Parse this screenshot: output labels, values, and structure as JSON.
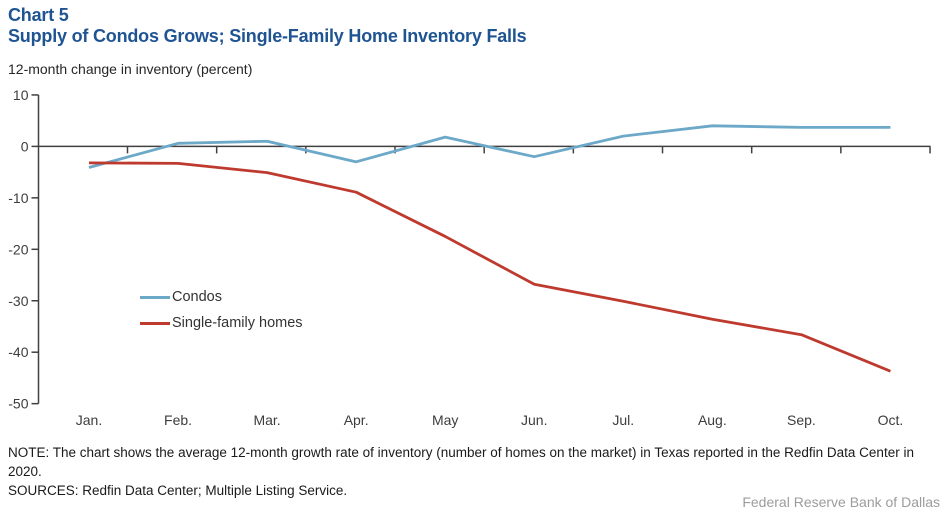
{
  "header": {
    "chart_label": "Chart 5",
    "title": "Supply of Condos Grows; Single-Family Home Inventory Falls",
    "subtitle": "12-month change in inventory (percent)"
  },
  "chart_data": {
    "type": "line",
    "title": "Supply of Condos Grows; Single-Family Home Inventory Falls",
    "xlabel": "",
    "ylabel": "12-month change in inventory (percent)",
    "categories": [
      "Jan.",
      "Feb.",
      "Mar.",
      "Apr.",
      "May",
      "Jun.",
      "Jul.",
      "Aug.",
      "Sep.",
      "Oct."
    ],
    "series": [
      {
        "id": "condos",
        "name": "Condos",
        "color": "#6CA8C8",
        "values": [
          -4.1,
          0.6,
          1.0,
          -3.0,
          1.8,
          -2.0,
          2.0,
          4.0,
          3.7,
          3.7
        ]
      },
      {
        "id": "single-family-homes",
        "name": "Single-family homes",
        "color": "#BE3A2F",
        "values": [
          -3.2,
          -3.3,
          -5.1,
          -8.9,
          -17.5,
          -26.8,
          -30.1,
          -33.6,
          -36.6,
          -43.7
        ]
      }
    ],
    "ylim": [
      -50,
      10
    ],
    "yticks": [
      10,
      0,
      -10,
      -20,
      -30,
      -40,
      -50
    ],
    "grid": false,
    "legend_position": "inside-left",
    "x_axis_at_zero": true
  },
  "colors": {
    "title_blue": "#1F5493",
    "axis": "#404040",
    "condos_line": "#6CA8C8",
    "single_family_line": "#BE3A2F",
    "attribution_gray": "#9c9c9c"
  },
  "footnotes": {
    "note": "NOTE: The chart shows the average 12-month growth rate of inventory (number of homes on the market) in Texas reported in the Redfin Data Center in 2020.",
    "sources": "SOURCES: Redfin Data Center; Multiple Listing Service.",
    "attribution": "Federal Reserve Bank of Dallas"
  }
}
